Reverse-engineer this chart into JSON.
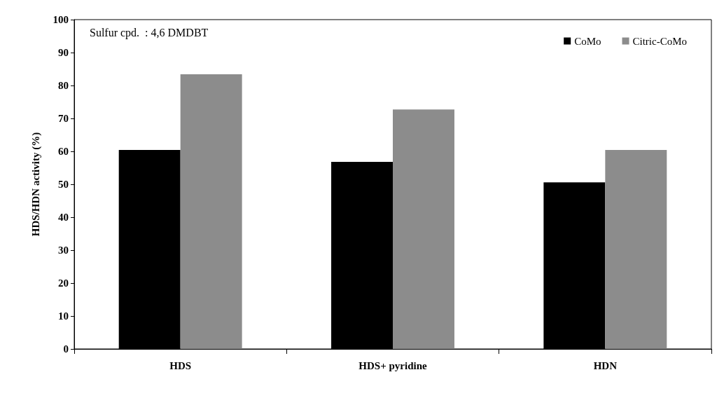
{
  "chart_data": {
    "type": "bar",
    "ylabel": "HDS/HDN activity (%)",
    "categories": [
      "HDS",
      "HDS+ pyridine",
      "HDN"
    ],
    "series": [
      {
        "name": "CoMo",
        "color": "#000000",
        "values": [
          60.4,
          56.8,
          50.6
        ]
      },
      {
        "name": "Citric-CoMo",
        "color": "#8c8c8c",
        "values": [
          83.4,
          72.7,
          60.4
        ]
      }
    ],
    "ylim": [
      0,
      100
    ],
    "yticks": [
      0,
      10,
      20,
      30,
      40,
      50,
      60,
      70,
      80,
      90,
      100
    ],
    "grid": false,
    "legend": "top right",
    "annotations": [
      "Sulfur cpd.  : 4,6 DMDBT"
    ]
  }
}
